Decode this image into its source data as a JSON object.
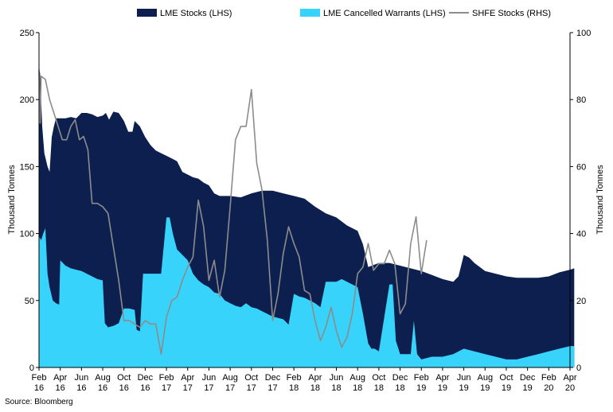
{
  "chart_data": {
    "type": "area",
    "legend": {
      "position": "top",
      "entries": [
        {
          "key": "lme_stocks",
          "label": "LME Stocks (LHS)"
        },
        {
          "key": "lme_cw",
          "label": "LME Cancelled Warrants (LHS)"
        },
        {
          "key": "shfe",
          "label": "SHFE Stocks (RHS)"
        }
      ]
    },
    "y_left": {
      "label": "Thousand Tonnes",
      "range": [
        0,
        250
      ],
      "ticks": [
        "0",
        "50",
        "100",
        "150",
        "200",
        "250"
      ]
    },
    "y_right": {
      "label": "Thousand Tonnes",
      "range": [
        0,
        100
      ],
      "ticks": [
        "0",
        "20",
        "40",
        "60",
        "80",
        "100"
      ]
    },
    "x_axis": {
      "range_months": [
        "2016-02",
        "2020-04"
      ],
      "ticks": [
        [
          "Feb",
          "16"
        ],
        [
          "Apr",
          "16"
        ],
        [
          "Jun",
          "16"
        ],
        [
          "Aug",
          "16"
        ],
        [
          "Oct",
          "16"
        ],
        [
          "Dec",
          "16"
        ],
        [
          "Feb",
          "17"
        ],
        [
          "Apr",
          "17"
        ],
        [
          "Jun",
          "17"
        ],
        [
          "Aug",
          "17"
        ],
        [
          "Oct",
          "17"
        ],
        [
          "Dec",
          "17"
        ],
        [
          "Feb",
          "18"
        ],
        [
          "Apr",
          "18"
        ],
        [
          "Jun",
          "18"
        ],
        [
          "Aug",
          "18"
        ],
        [
          "Oct",
          "18"
        ],
        [
          "Dec",
          "18"
        ],
        [
          "Feb",
          "19"
        ],
        [
          "Apr",
          "19"
        ],
        [
          "Jun",
          "19"
        ],
        [
          "Aug",
          "19"
        ],
        [
          "Oct",
          "19"
        ],
        [
          "Dec",
          "19"
        ],
        [
          "Feb",
          "20"
        ],
        [
          "Apr",
          "20"
        ]
      ]
    },
    "colors": {
      "lme_stocks": "#0d1f4e",
      "lme_cw": "#38d3fb",
      "shfe": "#8c8c8c"
    },
    "grid": false,
    "series": [
      {
        "name": "LME Stocks (LHS)",
        "axis": "left",
        "style": "area",
        "points": [
          [
            0,
            222
          ],
          [
            0.1,
            220
          ],
          [
            0.3,
            180
          ],
          [
            0.5,
            160
          ],
          [
            0.8,
            150
          ],
          [
            1,
            146
          ],
          [
            1.2,
            172
          ],
          [
            1.4,
            180
          ],
          [
            1.6,
            186
          ],
          [
            2,
            186
          ],
          [
            2.5,
            186
          ],
          [
            3,
            187
          ],
          [
            3.5,
            186
          ],
          [
            4,
            190
          ],
          [
            4.5,
            190
          ],
          [
            5,
            189
          ],
          [
            5.5,
            187
          ],
          [
            6,
            188
          ],
          [
            6.3,
            190
          ],
          [
            6.6,
            185
          ],
          [
            7,
            191
          ],
          [
            7.5,
            190
          ],
          [
            8,
            184
          ],
          [
            8.4,
            176
          ],
          [
            8.8,
            176
          ],
          [
            9,
            184
          ],
          [
            9.5,
            180
          ],
          [
            10,
            172
          ],
          [
            10.5,
            166
          ],
          [
            11,
            162
          ],
          [
            11.5,
            160
          ],
          [
            12,
            158
          ],
          [
            12.5,
            156
          ],
          [
            13,
            154
          ],
          [
            13.5,
            146
          ],
          [
            14,
            144
          ],
          [
            14.5,
            142
          ],
          [
            15,
            141
          ],
          [
            15.5,
            138
          ],
          [
            16,
            136
          ],
          [
            16.5,
            130
          ],
          [
            17,
            128
          ],
          [
            18,
            128
          ],
          [
            19,
            127
          ],
          [
            20,
            130
          ],
          [
            21,
            132
          ],
          [
            22,
            132
          ],
          [
            23,
            130
          ],
          [
            24,
            128
          ],
          [
            25,
            126
          ],
          [
            26,
            120
          ],
          [
            27,
            115
          ],
          [
            28,
            112
          ],
          [
            29,
            106
          ],
          [
            30,
            102
          ],
          [
            30.5,
            92
          ],
          [
            31,
            75
          ],
          [
            32,
            78
          ],
          [
            33,
            78
          ],
          [
            34,
            76
          ],
          [
            35,
            74
          ],
          [
            36,
            72
          ],
          [
            37,
            69
          ],
          [
            38,
            66
          ],
          [
            39,
            64
          ],
          [
            39.5,
            68
          ],
          [
            40,
            84
          ],
          [
            40.5,
            82
          ],
          [
            41,
            78
          ],
          [
            42,
            72
          ],
          [
            43,
            70
          ],
          [
            44,
            68
          ],
          [
            45,
            67
          ],
          [
            46,
            67
          ],
          [
            47,
            67
          ],
          [
            48,
            68
          ],
          [
            49,
            71
          ],
          [
            50,
            73
          ],
          [
            50.4,
            74
          ]
        ]
      },
      {
        "name": "LME Cancelled Warrants (LHS)",
        "axis": "left",
        "style": "area",
        "points": [
          [
            0,
            98
          ],
          [
            0.2,
            95
          ],
          [
            0.4,
            100
          ],
          [
            0.6,
            104
          ],
          [
            0.8,
            70
          ],
          [
            1,
            60
          ],
          [
            1.3,
            50
          ],
          [
            1.6,
            48
          ],
          [
            1.9,
            47
          ],
          [
            2,
            80
          ],
          [
            2.5,
            76
          ],
          [
            3,
            74
          ],
          [
            3.5,
            73
          ],
          [
            4,
            72
          ],
          [
            4.5,
            70
          ],
          [
            5,
            68
          ],
          [
            5.5,
            66
          ],
          [
            6,
            65
          ],
          [
            6.2,
            33
          ],
          [
            6.5,
            30
          ],
          [
            7,
            31
          ],
          [
            7.5,
            33
          ],
          [
            8,
            44
          ],
          [
            8.5,
            44
          ],
          [
            9,
            43
          ],
          [
            9.2,
            28
          ],
          [
            9.5,
            27
          ],
          [
            9.8,
            70
          ],
          [
            10,
            70
          ],
          [
            10.5,
            70
          ],
          [
            11,
            70
          ],
          [
            11.5,
            70
          ],
          [
            12,
            112
          ],
          [
            12.3,
            112
          ],
          [
            12.6,
            100
          ],
          [
            13,
            88
          ],
          [
            13.5,
            84
          ],
          [
            14,
            80
          ],
          [
            14.5,
            70
          ],
          [
            15,
            65
          ],
          [
            15.5,
            62
          ],
          [
            16,
            60
          ],
          [
            16.5,
            56
          ],
          [
            17,
            55
          ],
          [
            17.5,
            50
          ],
          [
            18,
            48
          ],
          [
            18.5,
            46
          ],
          [
            19,
            45
          ],
          [
            19.5,
            48
          ],
          [
            20,
            45
          ],
          [
            20.5,
            44
          ],
          [
            21,
            42
          ],
          [
            22,
            38
          ],
          [
            23,
            36
          ],
          [
            23.5,
            32
          ],
          [
            24,
            55
          ],
          [
            24.5,
            53
          ],
          [
            25,
            52
          ],
          [
            25.5,
            50
          ],
          [
            26,
            48
          ],
          [
            26.5,
            45
          ],
          [
            27,
            64
          ],
          [
            27.5,
            64
          ],
          [
            28,
            64
          ],
          [
            28.5,
            66
          ],
          [
            29,
            64
          ],
          [
            29.5,
            62
          ],
          [
            30,
            60
          ],
          [
            30.5,
            40
          ],
          [
            31,
            18
          ],
          [
            31.3,
            14
          ],
          [
            31.6,
            14
          ],
          [
            32,
            12
          ],
          [
            33,
            62
          ],
          [
            33.3,
            62
          ],
          [
            33.6,
            20
          ],
          [
            34,
            10
          ],
          [
            34.5,
            10
          ],
          [
            35,
            10
          ],
          [
            35.3,
            35
          ],
          [
            35.6,
            10
          ],
          [
            36,
            6
          ],
          [
            37,
            8
          ],
          [
            38,
            8
          ],
          [
            39,
            10
          ],
          [
            40,
            14
          ],
          [
            41,
            12
          ],
          [
            42,
            10
          ],
          [
            43,
            8
          ],
          [
            44,
            6
          ],
          [
            45,
            6
          ],
          [
            46,
            8
          ],
          [
            47,
            10
          ],
          [
            48,
            12
          ],
          [
            49,
            14
          ],
          [
            50,
            16
          ],
          [
            50.4,
            16
          ]
        ]
      },
      {
        "name": "SHFE Stocks (RHS)",
        "axis": "right",
        "style": "line",
        "points": [
          [
            0,
            89
          ],
          [
            0.1,
            73
          ],
          [
            0.2,
            87
          ],
          [
            0.6,
            86
          ],
          [
            1,
            80
          ],
          [
            1.4,
            76
          ],
          [
            1.8,
            72
          ],
          [
            2.2,
            68
          ],
          [
            2.6,
            68
          ],
          [
            3,
            72
          ],
          [
            3.4,
            74
          ],
          [
            3.8,
            68
          ],
          [
            4.2,
            69
          ],
          [
            4.6,
            65
          ],
          [
            5,
            49
          ],
          [
            5.5,
            49
          ],
          [
            6,
            48
          ],
          [
            6.5,
            46
          ],
          [
            7,
            36
          ],
          [
            7.5,
            26
          ],
          [
            8,
            14
          ],
          [
            8.5,
            14
          ],
          [
            9,
            13
          ],
          [
            9.5,
            12
          ],
          [
            10,
            14
          ],
          [
            10.5,
            13
          ],
          [
            11,
            13
          ],
          [
            11.5,
            4
          ],
          [
            12,
            15
          ],
          [
            12.5,
            20
          ],
          [
            13,
            21
          ],
          [
            13.5,
            26
          ],
          [
            14,
            30
          ],
          [
            14.5,
            33
          ],
          [
            15,
            50
          ],
          [
            15.5,
            42
          ],
          [
            16,
            26
          ],
          [
            16.5,
            32
          ],
          [
            17,
            21
          ],
          [
            17.5,
            29
          ],
          [
            18,
            48
          ],
          [
            18.5,
            68
          ],
          [
            19,
            72
          ],
          [
            19.5,
            72
          ],
          [
            20,
            83
          ],
          [
            20.5,
            61
          ],
          [
            21,
            53
          ],
          [
            21.5,
            38
          ],
          [
            22,
            14
          ],
          [
            22.5,
            22
          ],
          [
            23,
            34
          ],
          [
            23.5,
            42
          ],
          [
            24,
            37
          ],
          [
            24.5,
            33
          ],
          [
            25,
            23
          ],
          [
            25.5,
            22
          ],
          [
            26,
            14
          ],
          [
            26.5,
            8
          ],
          [
            27,
            12
          ],
          [
            27.5,
            18
          ],
          [
            28,
            11
          ],
          [
            28.5,
            6
          ],
          [
            29,
            9
          ],
          [
            29.5,
            16
          ],
          [
            30,
            28
          ],
          [
            30.5,
            30
          ],
          [
            31,
            37
          ],
          [
            31.5,
            29
          ],
          [
            32,
            31
          ],
          [
            32.5,
            31
          ],
          [
            33,
            35
          ],
          [
            33.5,
            31
          ],
          [
            34,
            16
          ],
          [
            34.5,
            19
          ],
          [
            35,
            37
          ],
          [
            35.5,
            45
          ],
          [
            36,
            28
          ],
          [
            36.5,
            38
          ]
        ]
      }
    ]
  },
  "source": "Source: Bloomberg"
}
